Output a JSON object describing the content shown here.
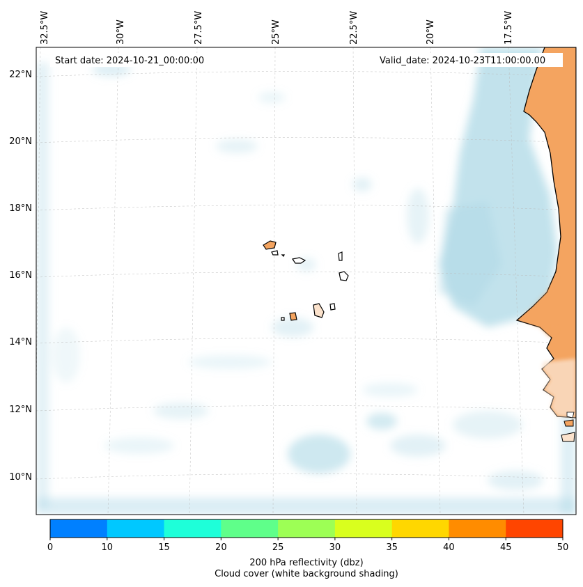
{
  "header": {
    "start_date": "Start date: 2024-10-21_00:00:00",
    "valid_date": "Valid_date: 2024-10-23T11:00:00.00"
  },
  "map": {
    "lon_labels": [
      "32.5°W",
      "30°W",
      "27.5°W",
      "25°W",
      "22.5°W",
      "20°W",
      "17.5°W"
    ],
    "lat_labels": [
      "22°N",
      "20°N",
      "18°N",
      "16°N",
      "14°N",
      "12°N",
      "10°N"
    ],
    "land_color": "#f4a460",
    "cloud_color": "#add8e6",
    "gridlines": true
  },
  "colorbar": {
    "ticks": [
      "0",
      "10",
      "15",
      "20",
      "25",
      "30",
      "35",
      "40",
      "45",
      "50"
    ],
    "colors": [
      "#0080ff",
      "#00c8ff",
      "#1effd9",
      "#5fff8a",
      "#9dff55",
      "#d9ff1e",
      "#ffd700",
      "#ff8c00",
      "#ff4500"
    ],
    "label_line1": "200 hPa reflectivity (dbz)",
    "label_line2": "Cloud cover (white background shading)"
  }
}
